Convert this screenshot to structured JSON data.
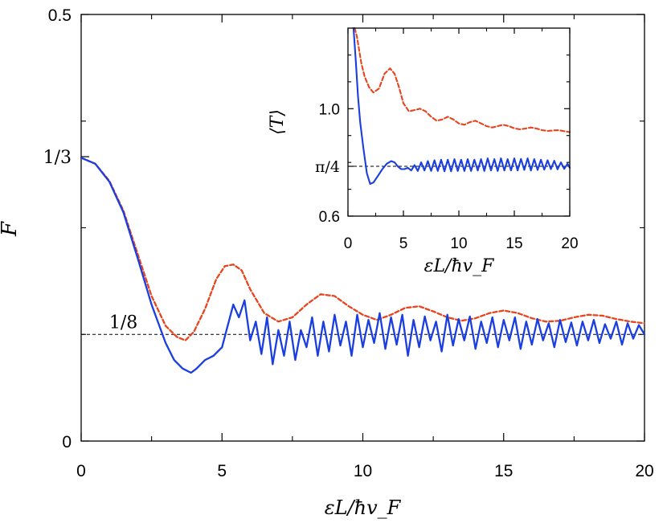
{
  "chart_data": [
    {
      "id": "main",
      "type": "line",
      "title": "",
      "xlabel": "εL/ħv_F",
      "ylabel": "F",
      "xlim": [
        0,
        20
      ],
      "ylim": [
        0,
        0.5
      ],
      "xticks": [
        0,
        5,
        10,
        15,
        20
      ],
      "xtick_labels": [
        "0",
        "5",
        "10",
        "15",
        "20"
      ],
      "yticks": [
        0,
        0.5
      ],
      "ytick_labels": [
        "0",
        "0.5"
      ],
      "special_yticks": [
        {
          "value": 0.3333,
          "label": "1/3"
        }
      ],
      "reference_lines": [
        {
          "value": 0.125,
          "label": "1/8",
          "style": "dashed"
        }
      ],
      "grid": false,
      "series": [
        {
          "name": "",
          "color": "#e8431c",
          "style": "dashed",
          "x": [
            0,
            0.5,
            1,
            1.5,
            2,
            2.5,
            3,
            3.4,
            3.7,
            4.0,
            4.4,
            4.8,
            5.1,
            5.4,
            5.7,
            6.0,
            6.5,
            7.0,
            7.5,
            8.0,
            8.5,
            9.0,
            9.5,
            10.0,
            10.5,
            11.0,
            11.5,
            12.0,
            12.5,
            13.0,
            13.5,
            14.0,
            14.5,
            15.0,
            15.5,
            16.0,
            16.5,
            17.0,
            17.5,
            18.0,
            18.5,
            19.0,
            19.5,
            20.0
          ],
          "y": [
            0.332,
            0.325,
            0.305,
            0.27,
            0.22,
            0.17,
            0.135,
            0.122,
            0.118,
            0.128,
            0.155,
            0.19,
            0.205,
            0.207,
            0.2,
            0.178,
            0.15,
            0.14,
            0.145,
            0.16,
            0.172,
            0.17,
            0.158,
            0.148,
            0.142,
            0.148,
            0.156,
            0.158,
            0.152,
            0.145,
            0.141,
            0.144,
            0.15,
            0.153,
            0.15,
            0.144,
            0.14,
            0.141,
            0.145,
            0.148,
            0.147,
            0.143,
            0.14,
            0.138
          ]
        },
        {
          "name": "",
          "color": "#1a3ee0",
          "style": "solid",
          "x": [
            0,
            0.5,
            1,
            1.5,
            2,
            2.5,
            3,
            3.3,
            3.6,
            3.9,
            4.1,
            4.4,
            4.7,
            5.0,
            5.2,
            5.4,
            5.6,
            5.8,
            6.0,
            6.2,
            6.4,
            6.6,
            6.8,
            7.0,
            7.2,
            7.4,
            7.6,
            7.8,
            8.0,
            8.2,
            8.4,
            8.6,
            8.8,
            9.0,
            9.2,
            9.4,
            9.6,
            9.8,
            10.0,
            10.2,
            10.4,
            10.6,
            10.8,
            11.0,
            11.2,
            11.4,
            11.6,
            11.8,
            12.0,
            12.2,
            12.4,
            12.6,
            12.8,
            13.0,
            13.2,
            13.4,
            13.6,
            13.8,
            14.0,
            14.2,
            14.4,
            14.6,
            14.8,
            15.0,
            15.2,
            15.4,
            15.6,
            15.8,
            16.0,
            16.2,
            16.4,
            16.6,
            16.8,
            17.0,
            17.2,
            17.4,
            17.6,
            17.8,
            18.0,
            18.2,
            18.4,
            18.6,
            18.8,
            19.0,
            19.2,
            19.4,
            19.6,
            19.8,
            20.0
          ],
          "y": [
            0.332,
            0.325,
            0.304,
            0.268,
            0.215,
            0.16,
            0.115,
            0.095,
            0.085,
            0.08,
            0.085,
            0.095,
            0.1,
            0.11,
            0.135,
            0.16,
            0.145,
            0.165,
            0.118,
            0.14,
            0.102,
            0.145,
            0.09,
            0.13,
            0.1,
            0.14,
            0.095,
            0.13,
            0.11,
            0.145,
            0.1,
            0.14,
            0.105,
            0.148,
            0.112,
            0.14,
            0.1,
            0.148,
            0.11,
            0.142,
            0.115,
            0.15,
            0.108,
            0.145,
            0.113,
            0.148,
            0.1,
            0.142,
            0.11,
            0.146,
            0.118,
            0.14,
            0.105,
            0.148,
            0.112,
            0.143,
            0.118,
            0.146,
            0.108,
            0.14,
            0.115,
            0.145,
            0.11,
            0.142,
            0.118,
            0.145,
            0.108,
            0.14,
            0.113,
            0.143,
            0.118,
            0.138,
            0.11,
            0.142,
            0.116,
            0.139,
            0.112,
            0.14,
            0.118,
            0.142,
            0.115,
            0.137,
            0.12,
            0.14,
            0.113,
            0.138,
            0.12,
            0.136,
            0.125
          ]
        }
      ]
    },
    {
      "id": "inset",
      "type": "line",
      "title": "",
      "xlabel": "εL/ħv_F",
      "ylabel": "⟨T⟩",
      "xlim": [
        0,
        20
      ],
      "ylim": [
        0.6,
        1.3
      ],
      "xticks": [
        0,
        5,
        10,
        15,
        20
      ],
      "xtick_labels": [
        "0",
        "5",
        "10",
        "15",
        "20"
      ],
      "yticks": [
        0.6,
        1.0
      ],
      "ytick_labels": [
        "0.6",
        "1.0"
      ],
      "special_yticks": [
        {
          "value": 0.7854,
          "label": "π/4"
        }
      ],
      "reference_lines": [
        {
          "value": 0.7854,
          "label": "",
          "style": "dashed"
        }
      ],
      "grid": false,
      "series": [
        {
          "name": "",
          "color": "#e8431c",
          "style": "dashed",
          "x": [
            0.6,
            0.8,
            1.0,
            1.2,
            1.5,
            1.9,
            2.3,
            2.8,
            3.3,
            3.8,
            4.2,
            4.6,
            5.0,
            5.5,
            6.0,
            6.5,
            7.0,
            7.5,
            8.0,
            8.5,
            9.0,
            9.5,
            10.0,
            10.5,
            11.0,
            11.5,
            12.0,
            12.5,
            13.0,
            13.5,
            14.0,
            14.5,
            15.0,
            15.5,
            16.0,
            16.5,
            17.0,
            17.5,
            18.0,
            18.5,
            19.0,
            19.5,
            20.0
          ],
          "y": [
            1.3,
            1.27,
            1.22,
            1.17,
            1.12,
            1.08,
            1.06,
            1.075,
            1.13,
            1.15,
            1.13,
            1.08,
            1.02,
            0.99,
            0.995,
            1.0,
            0.99,
            0.97,
            0.955,
            0.96,
            0.97,
            0.96,
            0.945,
            0.94,
            0.95,
            0.955,
            0.945,
            0.935,
            0.93,
            0.935,
            0.94,
            0.935,
            0.927,
            0.923,
            0.926,
            0.93,
            0.926,
            0.92,
            0.917,
            0.919,
            0.92,
            0.916,
            0.913
          ]
        },
        {
          "name": "",
          "color": "#1a3ee0",
          "style": "solid",
          "x": [
            0.5,
            0.7,
            0.9,
            1.1,
            1.4,
            1.7,
            2.0,
            2.3,
            2.7,
            3.1,
            3.5,
            3.9,
            4.2,
            4.5,
            4.8,
            5.1,
            5.4,
            5.7,
            6.0,
            6.3,
            6.6,
            6.9,
            7.2,
            7.5,
            7.8,
            8.1,
            8.4,
            8.7,
            9.0,
            9.3,
            9.6,
            9.9,
            10.2,
            10.5,
            10.8,
            11.1,
            11.4,
            11.7,
            12.0,
            12.3,
            12.6,
            12.9,
            13.2,
            13.5,
            13.8,
            14.1,
            14.4,
            14.7,
            15.0,
            15.3,
            15.6,
            15.9,
            16.2,
            16.5,
            16.8,
            17.1,
            17.4,
            17.7,
            18.0,
            18.3,
            18.6,
            18.9,
            19.2,
            19.5,
            19.8,
            20.0
          ],
          "y": [
            1.3,
            1.18,
            1.05,
            0.95,
            0.85,
            0.76,
            0.72,
            0.725,
            0.75,
            0.775,
            0.795,
            0.805,
            0.8,
            0.785,
            0.775,
            0.775,
            0.78,
            0.77,
            0.79,
            0.768,
            0.8,
            0.77,
            0.805,
            0.768,
            0.808,
            0.768,
            0.81,
            0.767,
            0.81,
            0.767,
            0.812,
            0.768,
            0.81,
            0.768,
            0.812,
            0.768,
            0.81,
            0.77,
            0.812,
            0.768,
            0.815,
            0.77,
            0.812,
            0.768,
            0.815,
            0.77,
            0.812,
            0.77,
            0.815,
            0.77,
            0.813,
            0.772,
            0.815,
            0.77,
            0.812,
            0.772,
            0.81,
            0.773,
            0.808,
            0.775,
            0.806,
            0.774,
            0.8,
            0.776,
            0.795,
            0.78
          ]
        }
      ]
    }
  ]
}
